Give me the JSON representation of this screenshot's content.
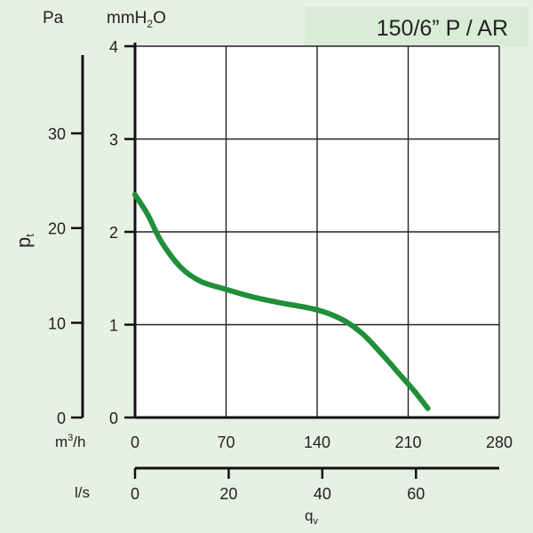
{
  "chart_data": {
    "type": "line",
    "title": "150/6” P / AR",
    "units": {
      "pa": "Pa",
      "mmh2o_main": "mmH",
      "mmh2o_sub": "2",
      "mmh2o_tail": "O",
      "m3h_main": "m",
      "m3h_sup": "3",
      "m3h_tail": "/h",
      "ls": "l/s"
    },
    "ylabel_main": "p",
    "ylabel_sub": "t",
    "xlabel_main": "q",
    "xlabel_sub": "v",
    "axes": {
      "m3h": {
        "range": [
          0,
          280
        ],
        "ticks": [
          "0",
          "70",
          "140",
          "210",
          "280"
        ]
      },
      "ls": {
        "range": [
          0,
          77.78
        ],
        "ticks": [
          "0",
          "20",
          "40",
          "60"
        ]
      },
      "mmh2o": {
        "range": [
          0,
          4
        ],
        "ticks": [
          "0",
          "1",
          "2",
          "3",
          "4"
        ]
      },
      "pa": {
        "range": [
          0,
          39.2
        ],
        "ticks": [
          "0",
          "10",
          "20",
          "30"
        ]
      }
    },
    "grid": true,
    "series": [
      {
        "color": "#1f8f3a",
        "x_m3h": [
          0,
          10,
          20,
          35,
          50,
          70,
          90,
          110,
          140,
          160,
          175,
          190,
          205,
          215,
          225
        ],
        "y_mmh2o": [
          2.4,
          2.18,
          1.9,
          1.62,
          1.47,
          1.38,
          1.3,
          1.24,
          1.16,
          1.05,
          0.9,
          0.68,
          0.44,
          0.28,
          0.1
        ]
      }
    ]
  }
}
